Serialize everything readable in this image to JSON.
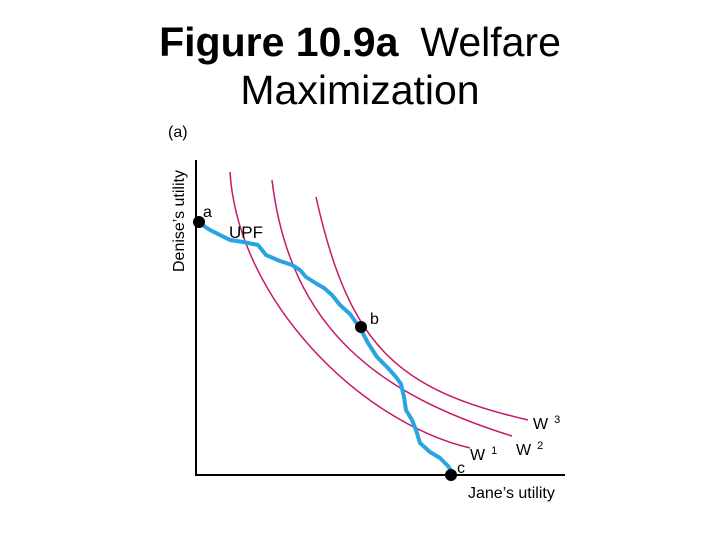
{
  "title": {
    "number": "Figure 10.9a",
    "text": "Welfare",
    "line2": "Maximization"
  },
  "panel_label": "(a)",
  "axes": {
    "y_label": "Denise’s utility",
    "x_label": "Jane’s utility"
  },
  "curves": {
    "upf_label": "UPF",
    "w1_label": "W",
    "w1_sup": "1",
    "w2_label": "W",
    "w2_sup": "2",
    "w3_label": "W",
    "w3_sup": "3"
  },
  "points": {
    "a": "a",
    "b": "b",
    "c": "c"
  },
  "colors": {
    "upf": "#2aa4e0",
    "welfare": "#c8176b",
    "axis": "#000000",
    "point": "#000000"
  }
}
